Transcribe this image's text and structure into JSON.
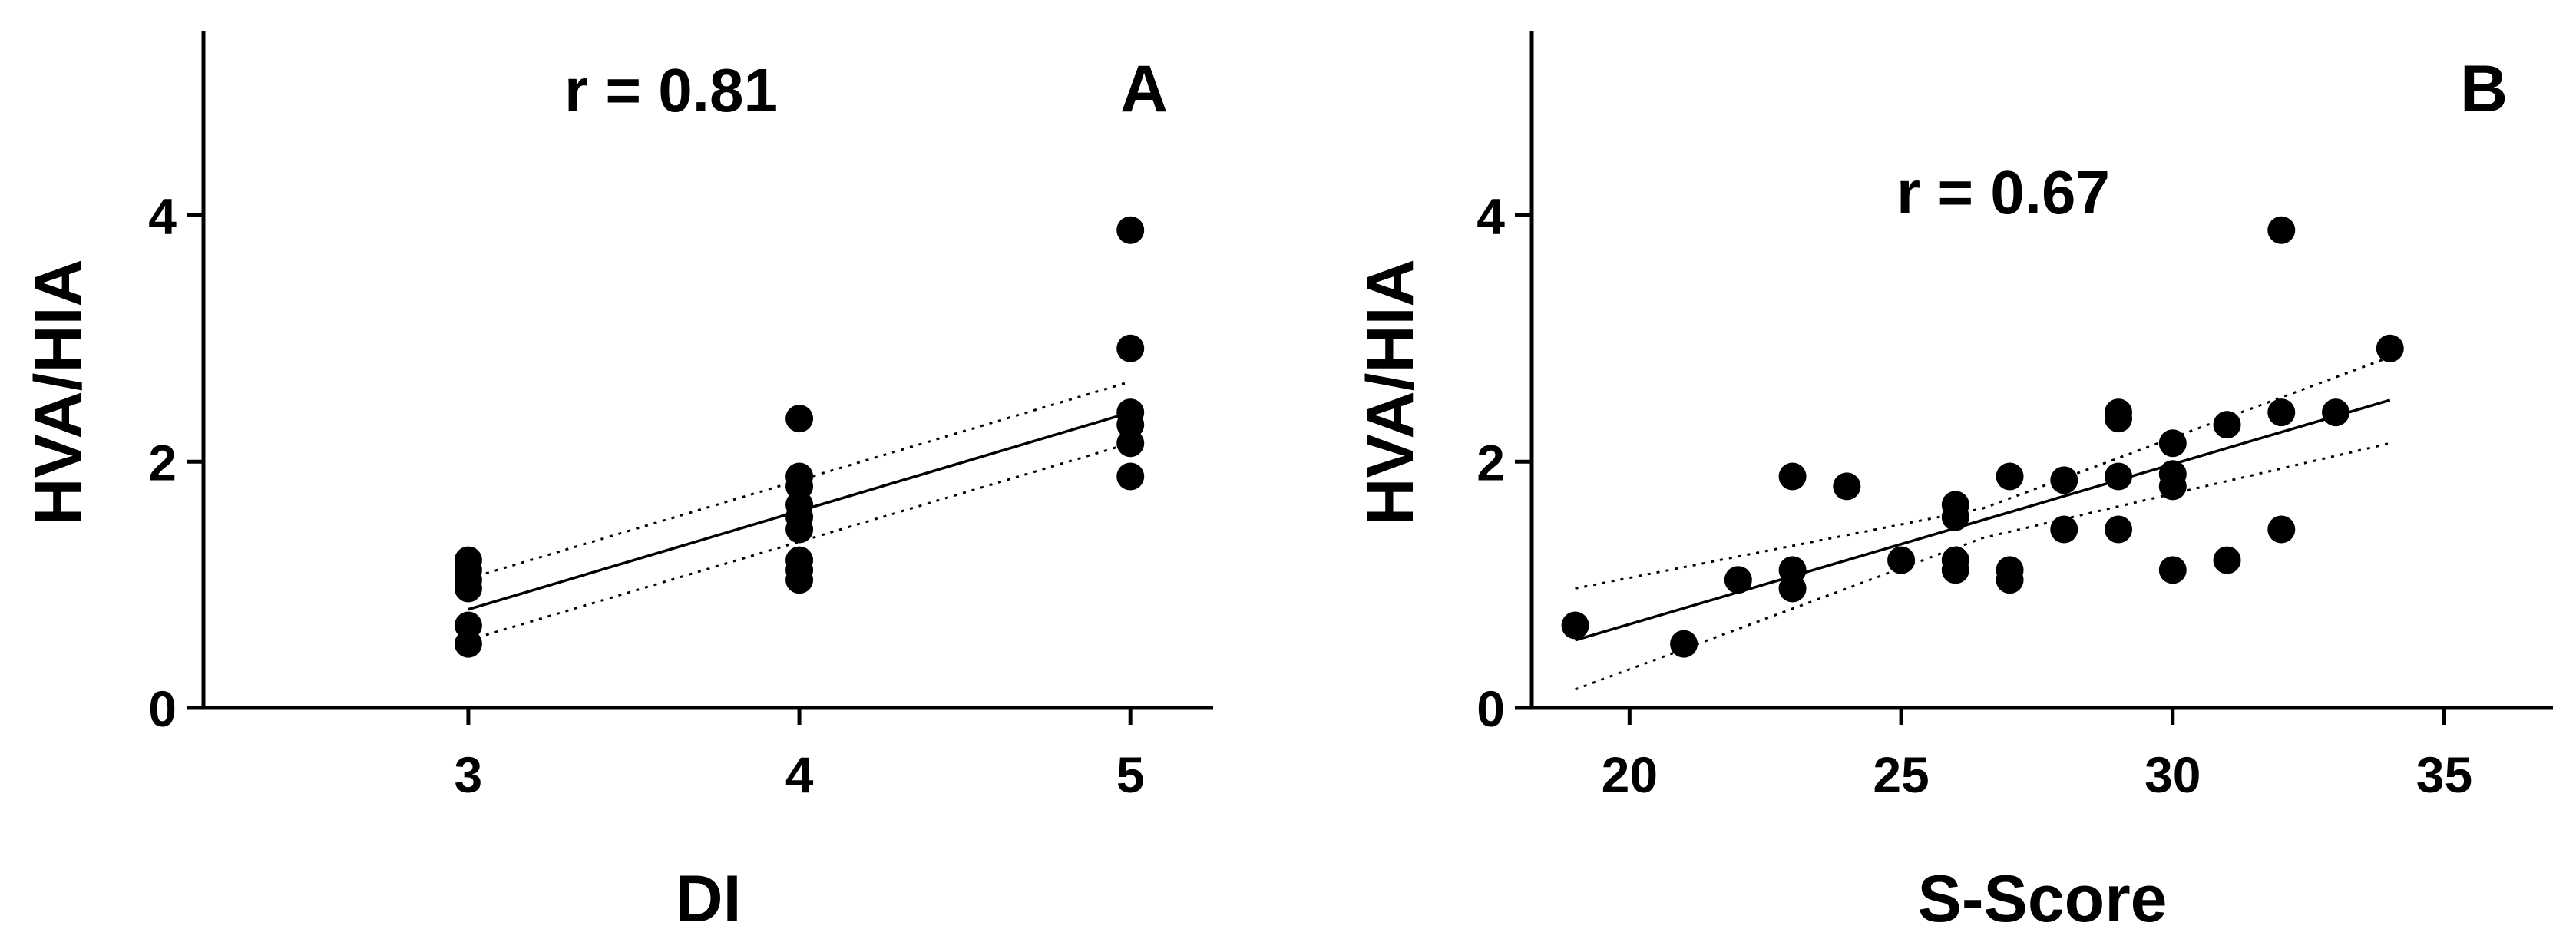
{
  "chart_data": [
    {
      "type": "scatter",
      "panel_label": "A",
      "annotation": "r = 0.81",
      "xlabel": "DI",
      "ylabel": "HVA/HIA",
      "xlim": [
        2.2,
        5.25
      ],
      "ylim": [
        0,
        5.5
      ],
      "xticks": [
        3,
        4,
        5
      ],
      "yticks": [
        0,
        2,
        4
      ],
      "points": [
        {
          "x": 3,
          "y": 0.52
        },
        {
          "x": 3,
          "y": 0.67
        },
        {
          "x": 3,
          "y": 0.97
        },
        {
          "x": 3,
          "y": 1.04
        },
        {
          "x": 3,
          "y": 1.12
        },
        {
          "x": 3,
          "y": 1.2
        },
        {
          "x": 4,
          "y": 1.04
        },
        {
          "x": 4,
          "y": 1.12
        },
        {
          "x": 4,
          "y": 1.2
        },
        {
          "x": 4,
          "y": 1.45
        },
        {
          "x": 4,
          "y": 1.55
        },
        {
          "x": 4,
          "y": 1.65
        },
        {
          "x": 4,
          "y": 1.8
        },
        {
          "x": 4,
          "y": 1.88
        },
        {
          "x": 4,
          "y": 2.35
        },
        {
          "x": 5,
          "y": 1.88
        },
        {
          "x": 5,
          "y": 2.15
        },
        {
          "x": 5,
          "y": 2.3
        },
        {
          "x": 5,
          "y": 2.4
        },
        {
          "x": 5,
          "y": 2.92
        },
        {
          "x": 5,
          "y": 3.88
        }
      ],
      "fit": {
        "x": [
          3,
          5
        ],
        "y": [
          0.8,
          2.4
        ]
      },
      "ci_lower": {
        "x": [
          3,
          5
        ],
        "y": [
          0.55,
          2.15
        ]
      },
      "ci_upper": {
        "x": [
          3,
          5
        ],
        "y": [
          1.05,
          2.65
        ]
      }
    },
    {
      "type": "scatter",
      "panel_label": "B",
      "annotation": "r = 0.67",
      "xlabel": "S-Score",
      "ylabel": "HVA/HIA",
      "xlim": [
        18.2,
        37
      ],
      "ylim": [
        0,
        5.5
      ],
      "xticks": [
        20,
        25,
        30,
        35
      ],
      "yticks": [
        0,
        2,
        4
      ],
      "points": [
        {
          "x": 19,
          "y": 0.67
        },
        {
          "x": 21,
          "y": 0.52
        },
        {
          "x": 22,
          "y": 1.04
        },
        {
          "x": 23,
          "y": 0.97
        },
        {
          "x": 23,
          "y": 1.12
        },
        {
          "x": 23,
          "y": 1.88
        },
        {
          "x": 24,
          "y": 1.8
        },
        {
          "x": 25,
          "y": 1.2
        },
        {
          "x": 26,
          "y": 1.12
        },
        {
          "x": 26,
          "y": 1.2
        },
        {
          "x": 26,
          "y": 1.55
        },
        {
          "x": 26,
          "y": 1.65
        },
        {
          "x": 27,
          "y": 1.04
        },
        {
          "x": 27,
          "y": 1.12
        },
        {
          "x": 27,
          "y": 1.88
        },
        {
          "x": 28,
          "y": 1.45
        },
        {
          "x": 28,
          "y": 1.85
        },
        {
          "x": 29,
          "y": 1.45
        },
        {
          "x": 29,
          "y": 1.88
        },
        {
          "x": 29,
          "y": 2.35
        },
        {
          "x": 29,
          "y": 2.4
        },
        {
          "x": 30,
          "y": 1.12
        },
        {
          "x": 30,
          "y": 1.8
        },
        {
          "x": 30,
          "y": 1.9
        },
        {
          "x": 30,
          "y": 2.15
        },
        {
          "x": 31,
          "y": 1.2
        },
        {
          "x": 31,
          "y": 2.3
        },
        {
          "x": 32,
          "y": 1.45
        },
        {
          "x": 32,
          "y": 2.4
        },
        {
          "x": 32,
          "y": 3.88
        },
        {
          "x": 33,
          "y": 2.4
        },
        {
          "x": 34,
          "y": 2.92
        }
      ],
      "fit": {
        "x": [
          19,
          34
        ],
        "y": [
          0.55,
          2.5
        ]
      },
      "ci_lower": {
        "x": [
          19,
          26.5,
          34
        ],
        "y": [
          0.15,
          1.38,
          2.15
        ]
      },
      "ci_upper": {
        "x": [
          19,
          26.5,
          34
        ],
        "y": [
          0.97,
          1.62,
          2.85
        ]
      }
    }
  ]
}
